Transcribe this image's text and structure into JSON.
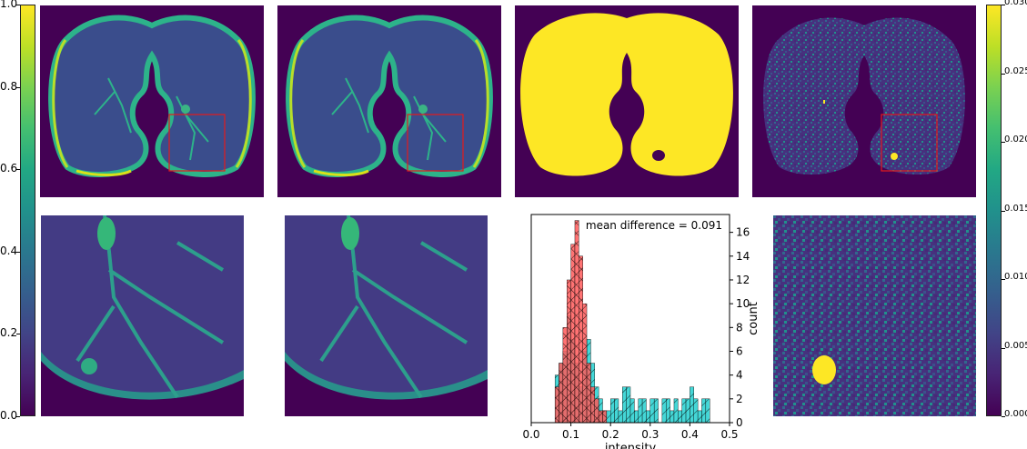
{
  "colors": {
    "viridis_dark": "#440154",
    "viridis_yellow": "#fde725",
    "roi_box": "#e41a1c",
    "hist_red_fill": "#ff5a5a",
    "hist_cyan_fill": "#44d7d7",
    "hist_edge": "#000000"
  },
  "colorbar_left": {
    "ticks": [
      "0.0",
      "0.2",
      "0.4",
      "0.6",
      "0.8",
      "1.0"
    ],
    "range": [
      0.0,
      1.0
    ]
  },
  "colorbar_right": {
    "ticks": [
      "0.000",
      "0.005",
      "0.010",
      "0.015",
      "0.020",
      "0.025",
      "0.030"
    ],
    "range": [
      0.0,
      0.03
    ]
  },
  "chart_data": {
    "type": "bar",
    "annotation": "mean difference = 0.091",
    "xlabel": "intensity",
    "ylabel": "count",
    "xlim": [
      0.0,
      0.5
    ],
    "ylim": [
      0,
      17.5
    ],
    "x_ticks": [
      "0.0",
      "0.1",
      "0.2",
      "0.3",
      "0.4",
      "0.5"
    ],
    "y_ticks": [
      "0",
      "2",
      "4",
      "6",
      "8",
      "10",
      "12",
      "14",
      "16"
    ],
    "bin_width": 0.01,
    "series": [
      {
        "color": "#44d7d7",
        "hatch": "diagonal",
        "bins": [
          {
            "x": 0.06,
            "count": 4
          },
          {
            "x": 0.07,
            "count": 5
          },
          {
            "x": 0.08,
            "count": 6
          },
          {
            "x": 0.09,
            "count": 9
          },
          {
            "x": 0.1,
            "count": 7
          },
          {
            "x": 0.11,
            "count": 5
          },
          {
            "x": 0.12,
            "count": 3
          },
          {
            "x": 0.13,
            "count": 6
          },
          {
            "x": 0.14,
            "count": 7
          },
          {
            "x": 0.15,
            "count": 5
          },
          {
            "x": 0.16,
            "count": 3
          },
          {
            "x": 0.17,
            "count": 2
          },
          {
            "x": 0.18,
            "count": 1
          },
          {
            "x": 0.19,
            "count": 1
          },
          {
            "x": 0.2,
            "count": 2
          },
          {
            "x": 0.21,
            "count": 2
          },
          {
            "x": 0.22,
            "count": 1
          },
          {
            "x": 0.23,
            "count": 3
          },
          {
            "x": 0.24,
            "count": 3
          },
          {
            "x": 0.25,
            "count": 2
          },
          {
            "x": 0.26,
            "count": 1
          },
          {
            "x": 0.27,
            "count": 2
          },
          {
            "x": 0.28,
            "count": 2
          },
          {
            "x": 0.29,
            "count": 1
          },
          {
            "x": 0.3,
            "count": 2
          },
          {
            "x": 0.31,
            "count": 2
          },
          {
            "x": 0.33,
            "count": 2
          },
          {
            "x": 0.34,
            "count": 2
          },
          {
            "x": 0.35,
            "count": 1
          },
          {
            "x": 0.36,
            "count": 2
          },
          {
            "x": 0.37,
            "count": 1
          },
          {
            "x": 0.38,
            "count": 2
          },
          {
            "x": 0.39,
            "count": 2
          },
          {
            "x": 0.4,
            "count": 3
          },
          {
            "x": 0.41,
            "count": 2
          },
          {
            "x": 0.42,
            "count": 1
          },
          {
            "x": 0.43,
            "count": 2
          },
          {
            "x": 0.44,
            "count": 2
          }
        ]
      },
      {
        "color": "#ff5a5a",
        "hatch": "cross",
        "bins": [
          {
            "x": 0.06,
            "count": 3
          },
          {
            "x": 0.07,
            "count": 5
          },
          {
            "x": 0.08,
            "count": 8
          },
          {
            "x": 0.09,
            "count": 12
          },
          {
            "x": 0.1,
            "count": 15
          },
          {
            "x": 0.11,
            "count": 17
          },
          {
            "x": 0.12,
            "count": 14
          },
          {
            "x": 0.13,
            "count": 10
          },
          {
            "x": 0.14,
            "count": 5
          },
          {
            "x": 0.15,
            "count": 3
          },
          {
            "x": 0.16,
            "count": 2
          },
          {
            "x": 0.17,
            "count": 1
          },
          {
            "x": 0.18,
            "count": 1
          }
        ]
      }
    ]
  }
}
